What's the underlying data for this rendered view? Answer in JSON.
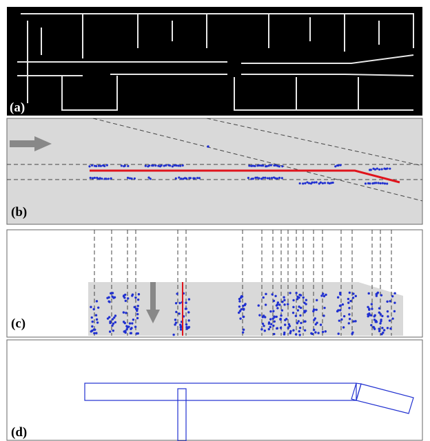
{
  "panels": {
    "a": "(a)",
    "b": "(b)",
    "c": "(c)",
    "d": "(d)"
  }
}
